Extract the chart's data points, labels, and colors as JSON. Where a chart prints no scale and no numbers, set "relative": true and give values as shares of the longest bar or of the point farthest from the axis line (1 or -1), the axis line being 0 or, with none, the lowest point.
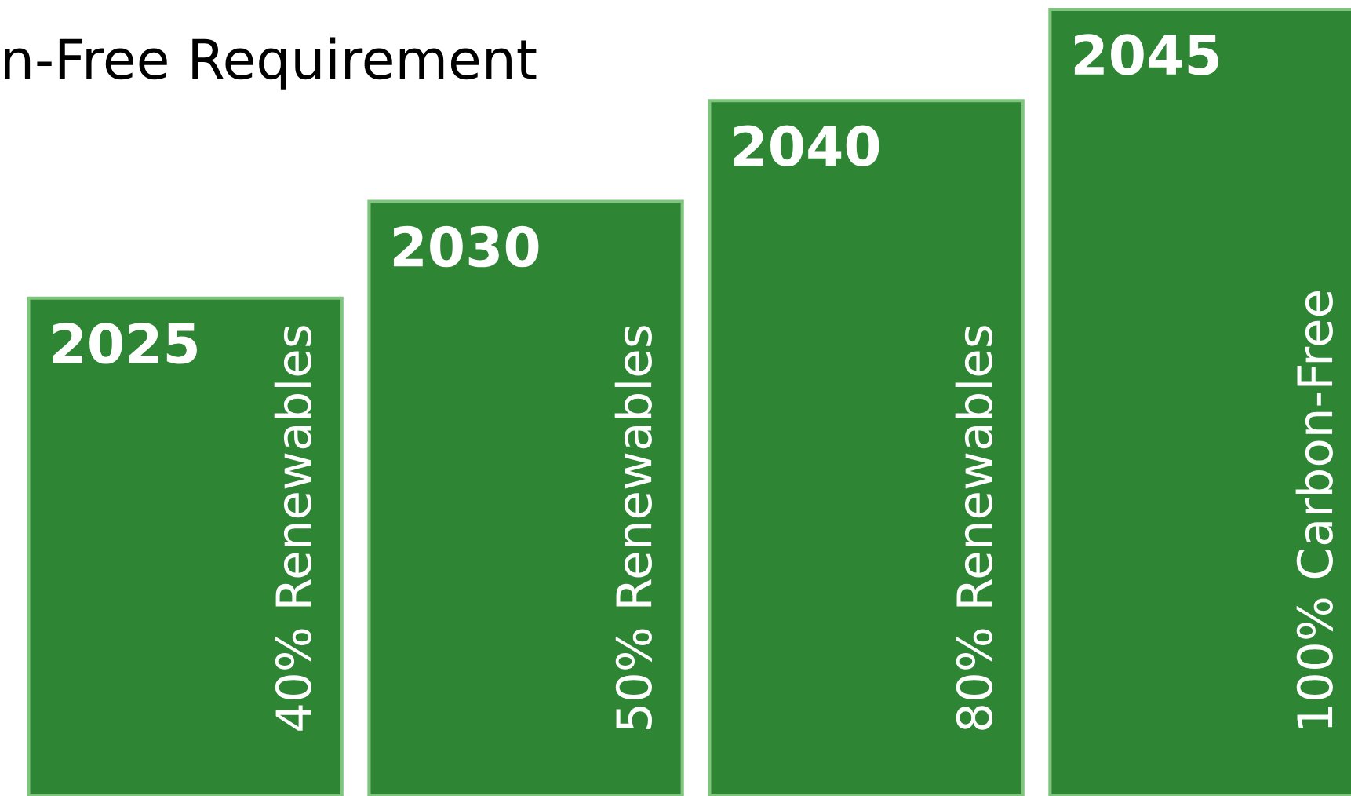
{
  "chart_data": {
    "type": "bar",
    "title": "n-Free Requirement",
    "relative": true,
    "categories": [
      "2025",
      "2030",
      "2040",
      "2045"
    ],
    "values": [
      0.633,
      0.756,
      0.884,
      1
    ],
    "annotations": [
      "40% Renewables",
      "50% Renewables",
      "80% Renewables",
      "100% Carbon-Free"
    ],
    "color": "#2e8534"
  }
}
